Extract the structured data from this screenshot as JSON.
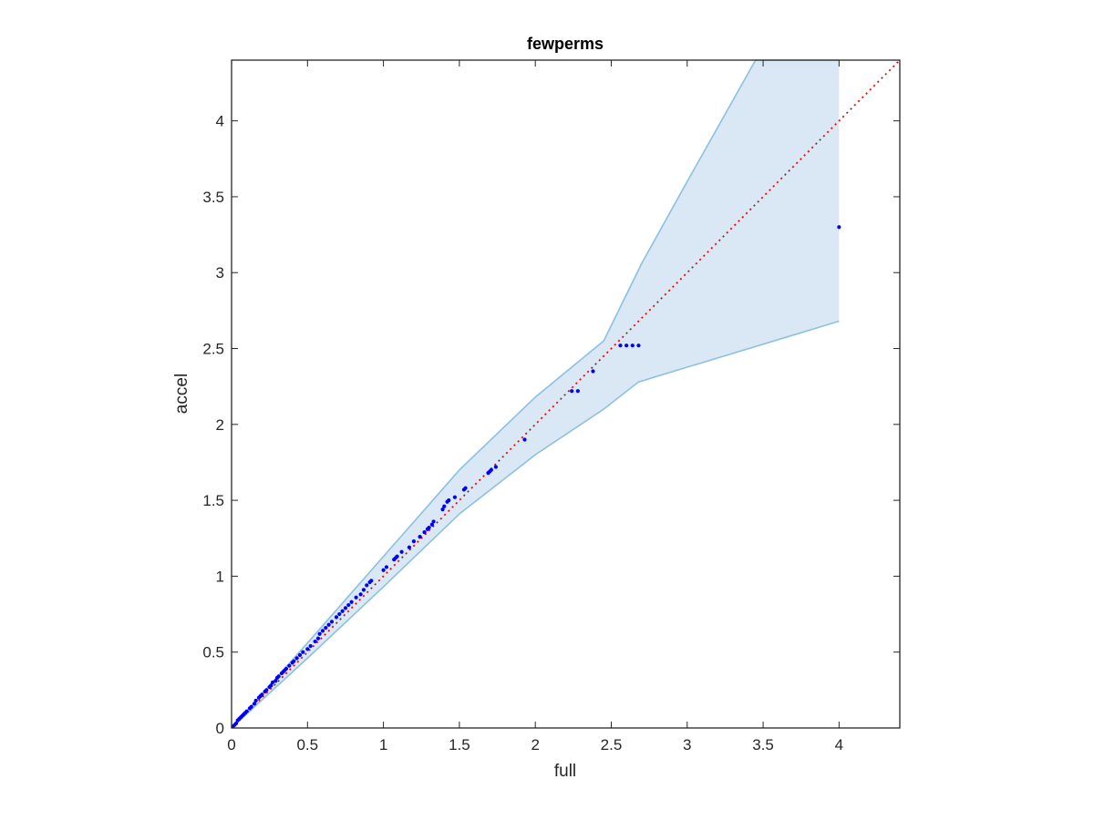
{
  "chart_data": {
    "type": "scatter",
    "title": "fewperms",
    "xlabel": "full",
    "ylabel": "accel",
    "xlim": [
      0,
      4.4
    ],
    "ylim": [
      0,
      4.4
    ],
    "xticks": [
      0,
      0.5,
      1,
      1.5,
      2,
      2.5,
      3,
      3.5,
      4
    ],
    "yticks": [
      0,
      0.5,
      1,
      1.5,
      2,
      2.5,
      3,
      3.5,
      4
    ],
    "xtick_labels": [
      "0",
      "0.5",
      "1",
      "1.5",
      "2",
      "2.5",
      "3",
      "3.5",
      "4"
    ],
    "ytick_labels": [
      "0",
      "0.5",
      "1",
      "1.5",
      "2",
      "2.5",
      "3",
      "3.5",
      "4"
    ],
    "grid": false,
    "colors": {
      "points": "#0000ff",
      "reference_line": "#ff0000",
      "band_fill": "#d9e8f4",
      "band_edge": "#8cc0e0",
      "axes": "#262626"
    },
    "reference_line": {
      "style": "dotted",
      "x": [
        0,
        4.4
      ],
      "y": [
        0,
        4.4
      ]
    },
    "band_upper": {
      "x": [
        0,
        0.5,
        1,
        1.5,
        2,
        2.45,
        2.7,
        3.0,
        3.45,
        4.0
      ],
      "y": [
        0,
        0.56,
        1.13,
        1.7,
        2.18,
        2.55,
        3.06,
        3.6,
        4.4,
        4.4
      ]
    },
    "band_lower": {
      "x": [
        0,
        0.5,
        1,
        1.5,
        2,
        2.45,
        2.68,
        4.0
      ],
      "y": [
        0,
        0.46,
        0.93,
        1.41,
        1.8,
        2.1,
        2.28,
        2.68
      ]
    },
    "series": [
      {
        "x": [
          0.01,
          0.02,
          0.03,
          0.04,
          0.05,
          0.06,
          0.07,
          0.08,
          0.09,
          0.1,
          0.12,
          0.13,
          0.15,
          0.16,
          0.18,
          0.19,
          0.2,
          0.22,
          0.23,
          0.25,
          0.26,
          0.27,
          0.29,
          0.3,
          0.31,
          0.33,
          0.34,
          0.35,
          0.36,
          0.38,
          0.4,
          0.41,
          0.43,
          0.45,
          0.47,
          0.5,
          0.52,
          0.55,
          0.57,
          0.58,
          0.6,
          0.62,
          0.64,
          0.66,
          0.69,
          0.71,
          0.73,
          0.75,
          0.77,
          0.79,
          0.82,
          0.85,
          0.87,
          0.89,
          0.91,
          0.92,
          1.0,
          1.02,
          1.07,
          1.08,
          1.09,
          1.12,
          1.17,
          1.2,
          1.24,
          1.27,
          1.29,
          1.3,
          1.32,
          1.33,
          1.39,
          1.4,
          1.42,
          1.43,
          1.47,
          1.53,
          1.54,
          1.69,
          1.7,
          1.71,
          1.74,
          1.93,
          2.24,
          2.28,
          2.38,
          2.56,
          2.6,
          2.64,
          2.68,
          4.0
        ],
        "y": [
          0.01,
          0.02,
          0.03,
          0.05,
          0.06,
          0.07,
          0.08,
          0.09,
          0.1,
          0.11,
          0.13,
          0.14,
          0.16,
          0.18,
          0.2,
          0.21,
          0.22,
          0.24,
          0.25,
          0.27,
          0.28,
          0.3,
          0.31,
          0.33,
          0.34,
          0.36,
          0.37,
          0.38,
          0.39,
          0.41,
          0.43,
          0.44,
          0.46,
          0.48,
          0.5,
          0.52,
          0.54,
          0.57,
          0.59,
          0.62,
          0.64,
          0.66,
          0.68,
          0.7,
          0.73,
          0.75,
          0.77,
          0.79,
          0.81,
          0.83,
          0.86,
          0.88,
          0.91,
          0.94,
          0.96,
          0.97,
          1.04,
          1.06,
          1.11,
          1.12,
          1.13,
          1.16,
          1.19,
          1.23,
          1.26,
          1.29,
          1.31,
          1.32,
          1.34,
          1.36,
          1.44,
          1.46,
          1.49,
          1.5,
          1.52,
          1.57,
          1.58,
          1.68,
          1.69,
          1.7,
          1.72,
          1.9,
          2.22,
          2.22,
          2.35,
          2.52,
          2.52,
          2.52,
          2.52,
          3.3
        ]
      }
    ]
  }
}
